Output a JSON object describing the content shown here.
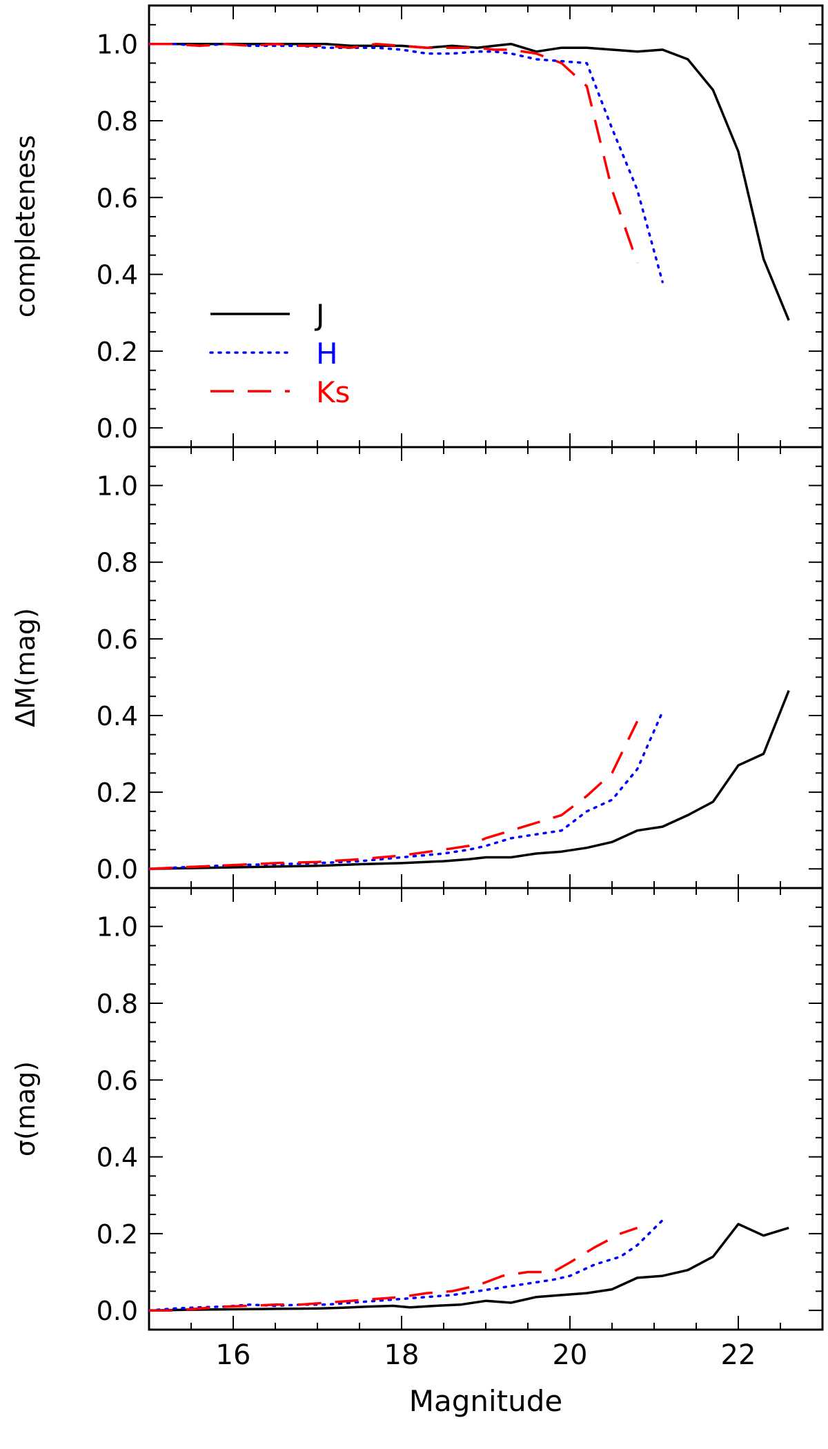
{
  "chart_data": [
    {
      "type": "line",
      "panel": "top",
      "ylabel": "completeness",
      "xlabel": "",
      "xlim": [
        15,
        23
      ],
      "ylim": [
        -0.05,
        1.1
      ],
      "yticks": [
        0.0,
        0.2,
        0.4,
        0.6,
        0.8,
        1.0
      ],
      "ytick_labels": [
        "0.0",
        "0.2",
        "0.4",
        "0.6",
        "0.8",
        "1.0"
      ],
      "xticks": [
        16,
        18,
        20,
        22
      ],
      "xtick_labels": [],
      "legend": "bottom-left",
      "series": [
        {
          "name": "J",
          "color": "#000000",
          "style": "solid",
          "x": [
            15.0,
            15.3,
            15.6,
            15.9,
            16.2,
            16.5,
            16.8,
            17.1,
            17.4,
            17.7,
            18.0,
            18.3,
            18.6,
            18.9,
            19.1,
            19.3,
            19.6,
            19.9,
            20.2,
            20.5,
            20.8,
            21.1,
            21.4,
            21.7,
            22.0,
            22.3,
            22.6
          ],
          "y": [
            1.0,
            1.0,
            1.0,
            1.0,
            1.0,
            1.0,
            1.0,
            1.0,
            0.995,
            0.995,
            0.995,
            0.99,
            0.995,
            0.99,
            0.995,
            1.0,
            0.98,
            0.99,
            0.99,
            0.985,
            0.98,
            0.985,
            0.96,
            0.88,
            0.72,
            0.44,
            0.28
          ]
        },
        {
          "name": "H",
          "color": "#0000ff",
          "style": "dotted",
          "x": [
            15.0,
            15.3,
            15.6,
            15.9,
            16.2,
            16.5,
            16.8,
            17.1,
            17.4,
            17.7,
            18.0,
            18.3,
            18.6,
            18.9,
            19.1,
            19.3,
            19.6,
            19.9,
            20.2,
            20.5,
            20.8,
            21.1
          ],
          "y": [
            1.0,
            1.0,
            0.995,
            1.0,
            0.995,
            0.995,
            0.995,
            0.99,
            0.99,
            0.99,
            0.985,
            0.975,
            0.975,
            0.98,
            0.98,
            0.975,
            0.96,
            0.955,
            0.95,
            0.78,
            0.62,
            0.38
          ]
        },
        {
          "name": "Ks",
          "color": "#ff0000",
          "style": "dashed",
          "x": [
            15.0,
            15.3,
            15.6,
            15.9,
            16.2,
            16.5,
            16.8,
            17.1,
            17.4,
            17.7,
            18.0,
            18.3,
            18.6,
            18.9,
            19.1,
            19.3,
            19.6,
            19.9,
            20.2,
            20.5,
            20.8
          ],
          "y": [
            1.0,
            1.0,
            0.995,
            1.0,
            0.995,
            1.0,
            0.995,
            0.995,
            0.99,
            1.0,
            0.995,
            0.99,
            0.99,
            0.99,
            0.985,
            0.985,
            0.975,
            0.95,
            0.89,
            0.62,
            0.43
          ]
        }
      ]
    },
    {
      "type": "line",
      "panel": "middle",
      "ylabel": "ΔM(mag)",
      "xlabel": "",
      "xlim": [
        15,
        23
      ],
      "ylim": [
        -0.05,
        1.1
      ],
      "yticks": [
        0.0,
        0.2,
        0.4,
        0.6,
        0.8,
        1.0
      ],
      "ytick_labels": [
        "0.0",
        "0.2",
        "0.4",
        "0.6",
        "0.8",
        "1.0"
      ],
      "xticks": [
        16,
        18,
        20,
        22
      ],
      "xtick_labels": [],
      "series": [
        {
          "name": "J",
          "color": "#000000",
          "style": "solid",
          "x": [
            15.0,
            15.5,
            16.0,
            16.5,
            17.0,
            17.5,
            18.0,
            18.5,
            18.8,
            19.0,
            19.3,
            19.6,
            19.9,
            20.2,
            20.5,
            20.8,
            21.1,
            21.4,
            21.7,
            22.0,
            22.3,
            22.6
          ],
          "y": [
            0.0,
            0.002,
            0.004,
            0.006,
            0.008,
            0.012,
            0.015,
            0.02,
            0.025,
            0.03,
            0.03,
            0.04,
            0.045,
            0.055,
            0.07,
            0.1,
            0.11,
            0.14,
            0.175,
            0.27,
            0.3,
            0.465
          ]
        },
        {
          "name": "H",
          "color": "#0000ff",
          "style": "dotted",
          "x": [
            15.0,
            15.5,
            16.0,
            16.5,
            17.0,
            17.5,
            18.0,
            18.5,
            18.8,
            19.0,
            19.3,
            19.6,
            19.9,
            20.2,
            20.5,
            20.8,
            21.1
          ],
          "y": [
            0.0,
            0.005,
            0.01,
            0.012,
            0.015,
            0.02,
            0.03,
            0.04,
            0.05,
            0.06,
            0.08,
            0.09,
            0.1,
            0.15,
            0.18,
            0.26,
            0.41
          ]
        },
        {
          "name": "Ks",
          "color": "#ff0000",
          "style": "dashed",
          "x": [
            15.0,
            15.5,
            16.0,
            16.5,
            17.0,
            17.5,
            18.0,
            18.5,
            18.8,
            19.0,
            19.3,
            19.6,
            19.9,
            20.2,
            20.5,
            20.8
          ],
          "y": [
            0.0,
            0.005,
            0.01,
            0.015,
            0.018,
            0.025,
            0.035,
            0.05,
            0.06,
            0.08,
            0.1,
            0.12,
            0.14,
            0.19,
            0.25,
            0.385
          ]
        }
      ]
    },
    {
      "type": "line",
      "panel": "bottom",
      "ylabel": "σ(mag)",
      "xlabel": "Magnitude",
      "xlim": [
        15,
        23
      ],
      "ylim": [
        -0.05,
        1.1
      ],
      "yticks": [
        0.0,
        0.2,
        0.4,
        0.6,
        0.8,
        1.0
      ],
      "ytick_labels": [
        "0.0",
        "0.2",
        "0.4",
        "0.6",
        "0.8",
        "1.0"
      ],
      "xticks": [
        16,
        18,
        20,
        22
      ],
      "xtick_labels": [
        "16",
        "18",
        "20",
        "22"
      ],
      "series": [
        {
          "name": "J",
          "color": "#000000",
          "style": "solid",
          "x": [
            15.0,
            15.5,
            16.0,
            16.5,
            17.0,
            17.3,
            17.6,
            17.9,
            18.1,
            18.4,
            18.7,
            19.0,
            19.3,
            19.6,
            19.9,
            20.2,
            20.5,
            20.8,
            21.1,
            21.4,
            21.7,
            22.0,
            22.3,
            22.6
          ],
          "y": [
            0.0,
            0.002,
            0.003,
            0.004,
            0.005,
            0.007,
            0.01,
            0.012,
            0.008,
            0.012,
            0.015,
            0.025,
            0.02,
            0.035,
            0.04,
            0.045,
            0.055,
            0.085,
            0.09,
            0.105,
            0.14,
            0.225,
            0.195,
            0.215
          ]
        },
        {
          "name": "H",
          "color": "#0000ff",
          "style": "dotted",
          "x": [
            15.0,
            15.3,
            15.6,
            15.9,
            16.2,
            16.5,
            16.8,
            17.1,
            17.4,
            17.7,
            18.0,
            18.3,
            18.6,
            18.9,
            19.2,
            19.5,
            19.8,
            20.0,
            20.3,
            20.6,
            20.8,
            21.1
          ],
          "y": [
            0.0,
            0.005,
            0.008,
            0.01,
            0.015,
            0.012,
            0.015,
            0.015,
            0.02,
            0.025,
            0.03,
            0.035,
            0.04,
            0.05,
            0.06,
            0.07,
            0.08,
            0.09,
            0.12,
            0.14,
            0.17,
            0.235
          ]
        },
        {
          "name": "Ks",
          "color": "#ff0000",
          "style": "dashed",
          "x": [
            15.0,
            15.3,
            15.6,
            15.9,
            16.2,
            16.5,
            16.8,
            17.1,
            17.4,
            17.7,
            18.0,
            18.3,
            18.6,
            18.9,
            19.2,
            19.5,
            19.8,
            20.0,
            20.3,
            20.6,
            20.8
          ],
          "y": [
            0.0,
            0.0,
            0.005,
            0.01,
            0.012,
            0.015,
            0.015,
            0.02,
            0.025,
            0.03,
            0.035,
            0.045,
            0.05,
            0.065,
            0.09,
            0.1,
            0.1,
            0.125,
            0.165,
            0.2,
            0.215
          ]
        }
      ]
    }
  ]
}
